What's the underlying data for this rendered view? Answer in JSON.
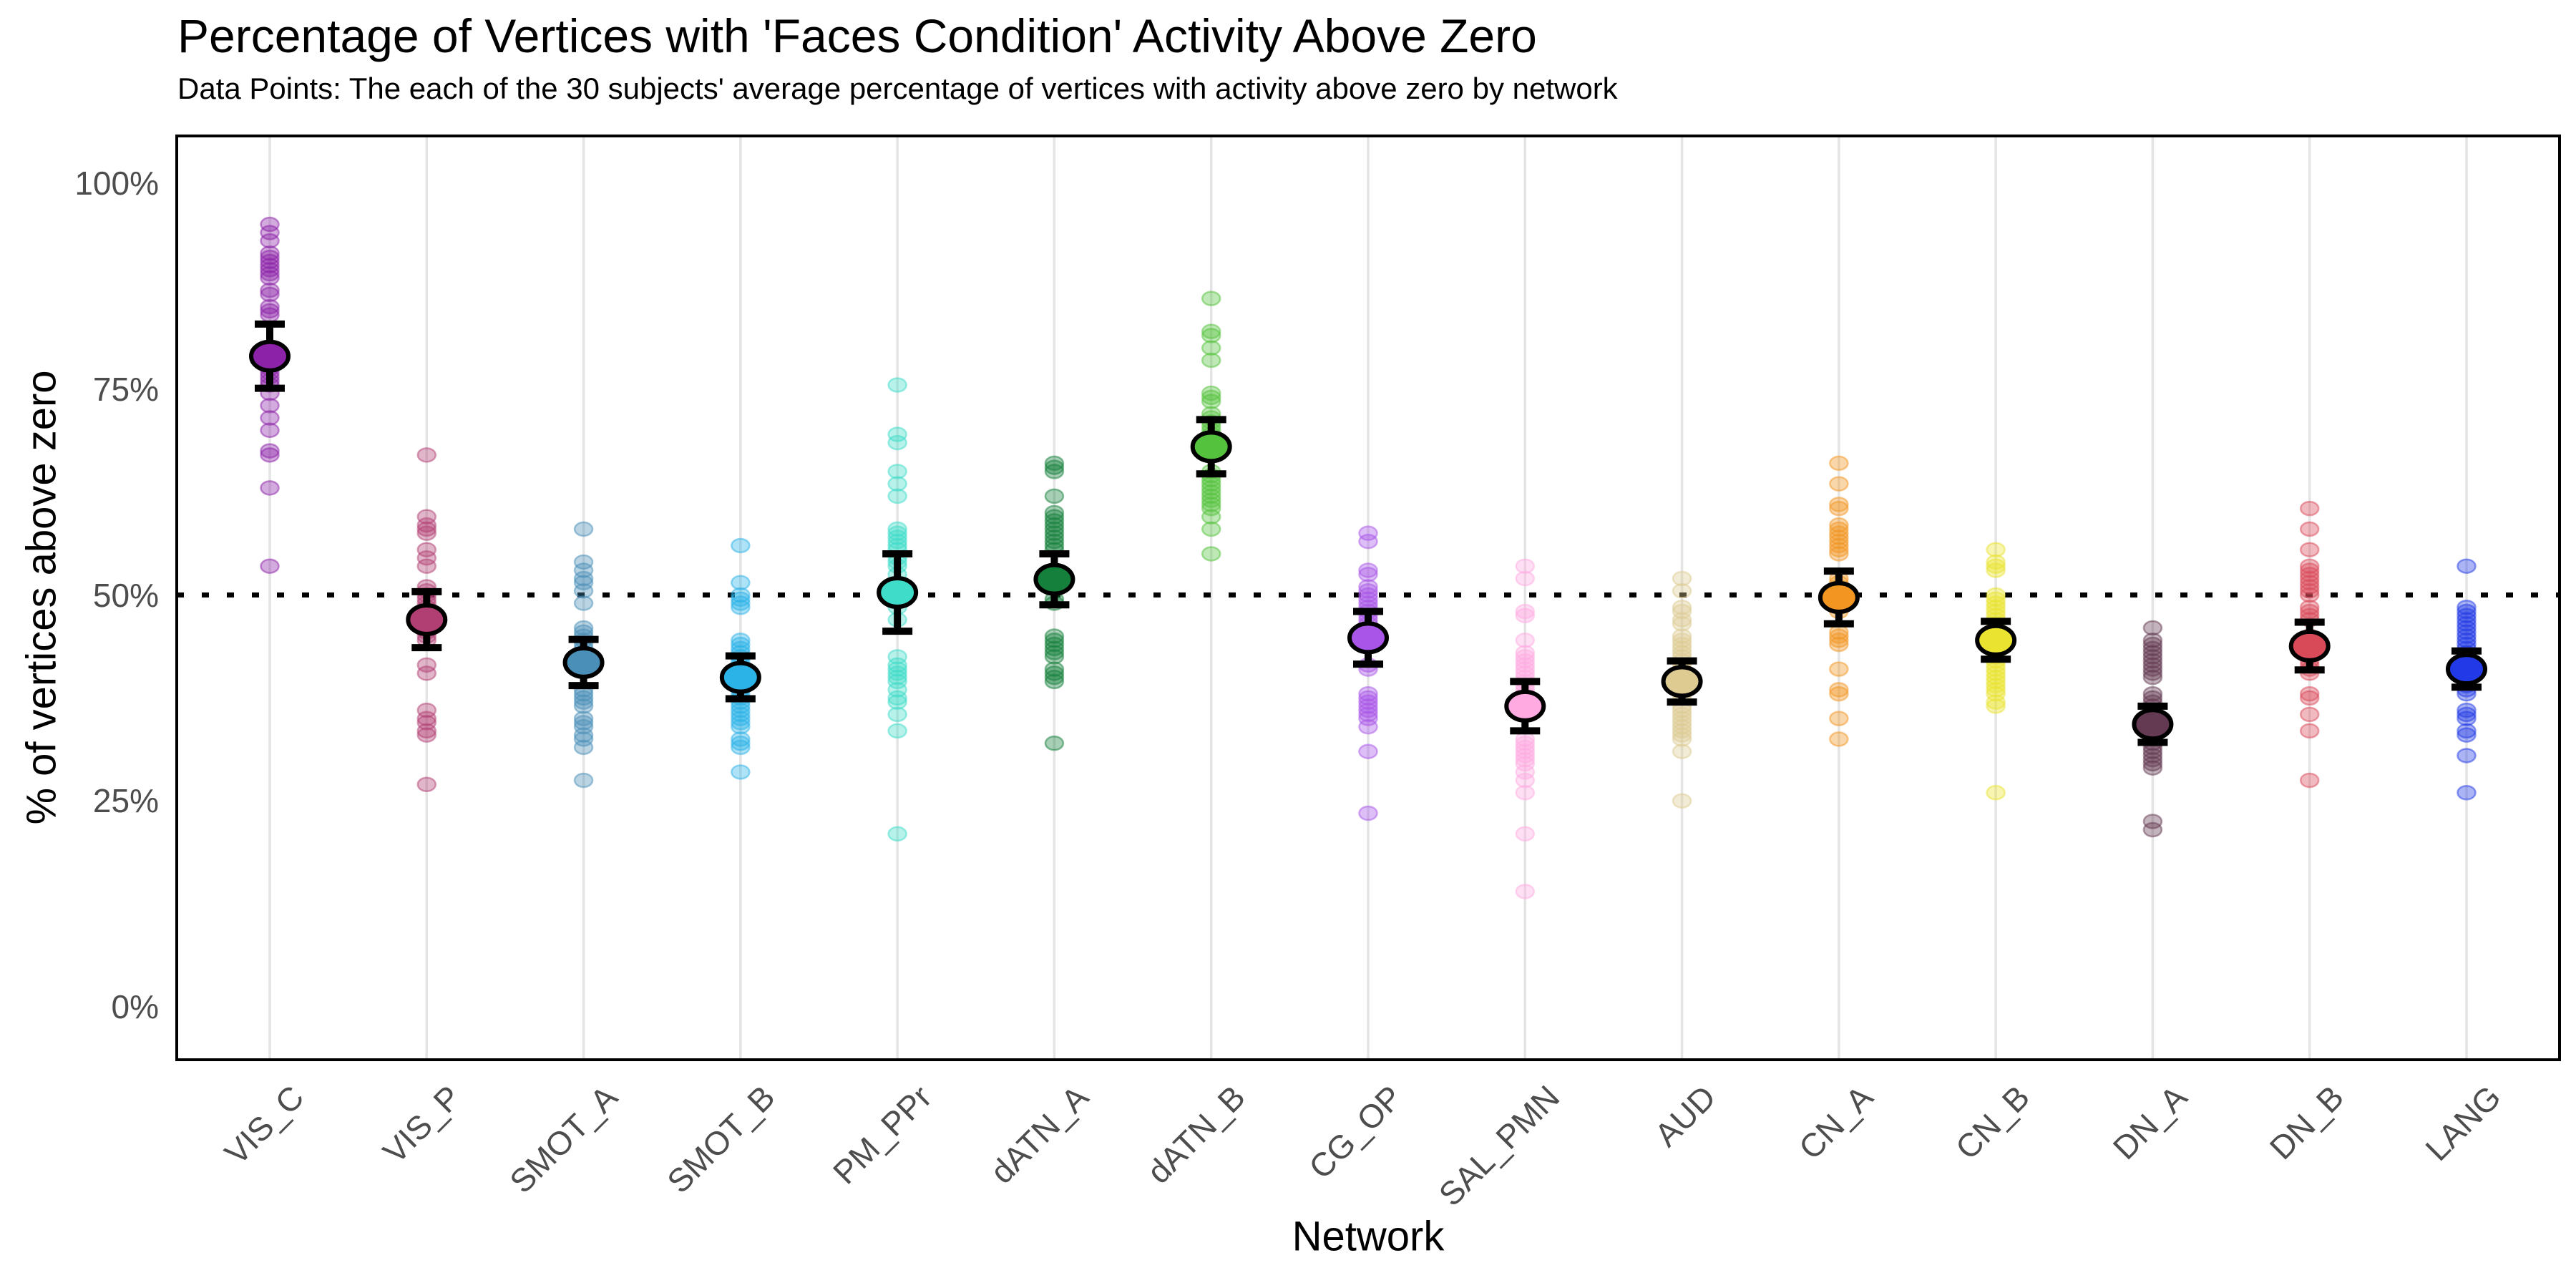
{
  "title": "Percentage of Vertices with 'Faces Condition' Activity Above Zero",
  "subtitle": "Data Points: The each of the 30 subjects' average percentage of vertices with activity above zero by network",
  "x_axis": {
    "label": "Network"
  },
  "y_axis": {
    "label": "% of vertices above zero",
    "tick_labels": [
      "0%",
      "25%",
      "50%",
      "75%",
      "100%"
    ]
  },
  "chart_data": {
    "type": "scatter",
    "title": "Percentage of Vertices with 'Faces Condition' Activity Above Zero",
    "subtitle": "Data Points: The each of the 30 subjects' average percentage of vertices with activity above zero by network",
    "xlabel": "Network",
    "ylabel": "% of vertices above zero",
    "ylim": [
      -6,
      106
    ],
    "yticks": [
      0,
      25,
      50,
      75,
      100
    ],
    "reference_line": 50,
    "grid": "vertical-category-lines-only",
    "grid_color": "#E4E4E4",
    "panel_border_color": "#000000",
    "tick_label_color": "#4D4D4D",
    "legend": "none",
    "marker_style": "30 translucent subject points per network, black 95% CI error bar, large outlined mean dot",
    "networks": [
      {
        "name": "VIS_C",
        "color": "#8B22A8",
        "mean": 79.0,
        "ci": 3.9,
        "points": [
          95,
          94,
          93,
          91.5,
          91,
          90.5,
          90,
          89.5,
          89,
          88.5,
          87,
          86.5,
          85,
          84.5,
          84,
          79.5,
          78,
          77.5,
          77,
          76.5,
          76,
          75.5,
          74.5,
          73,
          71.5,
          70,
          67.5,
          67,
          63,
          53.5
        ]
      },
      {
        "name": "VIS_P",
        "color": "#B23F74",
        "mean": 47.0,
        "ci": 3.4,
        "points": [
          67,
          59.5,
          58.5,
          58,
          57.5,
          55.5,
          54.5,
          53.5,
          51,
          50.5,
          50,
          49.5,
          49,
          48.5,
          48,
          47.5,
          47,
          46.5,
          46,
          45.5,
          45,
          44.5,
          41.5,
          40.5,
          36,
          35,
          34.5,
          33.5,
          33,
          27
        ]
      },
      {
        "name": "SMOT_A",
        "color": "#4A8FB8",
        "mean": 41.8,
        "ci": 2.8,
        "points": [
          58,
          54,
          53,
          52,
          51.5,
          50.5,
          49,
          46,
          45.5,
          45,
          44.5,
          44,
          43.5,
          43,
          42.5,
          42,
          41.5,
          41,
          38.5,
          38,
          37.5,
          37,
          36.5,
          35,
          34.5,
          34,
          33,
          32.5,
          31.5,
          27.5
        ]
      },
      {
        "name": "SMOT_B",
        "color": "#2BB2E7",
        "mean": 40.0,
        "ci": 2.6,
        "points": [
          56,
          51.5,
          50,
          49.5,
          49,
          48.5,
          44.5,
          44,
          43.5,
          43,
          42.5,
          42,
          41.5,
          41,
          40.5,
          39,
          38.5,
          38,
          37.5,
          37,
          36.5,
          36,
          35.5,
          35,
          34.5,
          34,
          32.5,
          32,
          31.5,
          28.5
        ]
      },
      {
        "name": "PM_PPr",
        "color": "#3EDCC9",
        "mean": 50.3,
        "ci": 4.7,
        "points": [
          75.5,
          69.5,
          68.5,
          65,
          63.5,
          62,
          58,
          57.5,
          57,
          56.5,
          56,
          55.5,
          54.5,
          54,
          53.5,
          52.5,
          48.5,
          47,
          42.5,
          41.5,
          41,
          40.5,
          40,
          39.5,
          38.5,
          37.5,
          37,
          35.5,
          33.5,
          21
        ]
      },
      {
        "name": "dATN_A",
        "color": "#15803C",
        "mean": 51.9,
        "ci": 3.1,
        "points": [
          66,
          65.5,
          65,
          62,
          60,
          59.5,
          59,
          58.5,
          58,
          57.5,
          57,
          56.5,
          56,
          55.5,
          53,
          52.5,
          52,
          49.5,
          49,
          45,
          44.5,
          44,
          43.5,
          43,
          42.5,
          41,
          40.5,
          40,
          39.5,
          32
        ]
      },
      {
        "name": "dATN_B",
        "color": "#54C23C",
        "mean": 68.0,
        "ci": 3.3,
        "points": [
          86,
          82,
          81.5,
          80,
          78.5,
          74.5,
          74,
          73.5,
          72,
          71.5,
          71,
          70.5,
          70,
          69.5,
          69,
          68.5,
          68,
          65,
          64.5,
          64,
          63.5,
          63,
          62.5,
          62,
          61.5,
          61,
          60.5,
          59.5,
          58,
          55
        ]
      },
      {
        "name": "CG_OP",
        "color": "#A855E8",
        "mean": 44.8,
        "ci": 3.2,
        "points": [
          57.5,
          56.5,
          53,
          52.5,
          51,
          50.5,
          50,
          49.5,
          49,
          48.5,
          48,
          47.5,
          47,
          46.5,
          46,
          45.5,
          45,
          44.5,
          41.5,
          41,
          38,
          37.5,
          37,
          36.5,
          36,
          35.5,
          35,
          34,
          31,
          23.5
        ]
      },
      {
        "name": "SAL_PMN",
        "color": "#FFABE1",
        "mean": 36.5,
        "ci": 3.0,
        "points": [
          53.5,
          52,
          48,
          47.5,
          44.5,
          43,
          42.5,
          42,
          41.5,
          41,
          40.5,
          40,
          39.5,
          39,
          38.5,
          38,
          37.5,
          37,
          32.5,
          32,
          31.5,
          31,
          30.5,
          30,
          29.5,
          28.5,
          27.5,
          26,
          21,
          14
        ]
      },
      {
        "name": "AUD",
        "color": "#DECB92",
        "mean": 39.5,
        "ci": 2.5,
        "points": [
          52,
          50.5,
          48.5,
          48,
          47,
          46.5,
          45,
          44.5,
          44,
          43.5,
          43,
          42.5,
          42,
          41.5,
          41,
          40.5,
          40,
          38,
          37.5,
          36.5,
          36,
          35.5,
          35,
          34.5,
          34,
          33.5,
          33,
          32.5,
          31,
          25
        ]
      },
      {
        "name": "CN_A",
        "color": "#F29521",
        "mean": 49.7,
        "ci": 3.2,
        "points": [
          66,
          63.5,
          61,
          60.5,
          58.5,
          58,
          57.5,
          57,
          56.5,
          56,
          55.5,
          55,
          52,
          51.5,
          51,
          50.5,
          50,
          49.5,
          49,
          48.5,
          48,
          45.5,
          45,
          44.5,
          44,
          41,
          38.5,
          38,
          35,
          32.5
        ]
      },
      {
        "name": "CN_B",
        "color": "#EAE430",
        "mean": 44.5,
        "ci": 2.3,
        "points": [
          55.5,
          54,
          53.5,
          53,
          50,
          49.5,
          49,
          48.5,
          48,
          47.5,
          47,
          46.5,
          46,
          45.5,
          45,
          44.5,
          44,
          42.5,
          42,
          41.5,
          41,
          40.5,
          40,
          39.5,
          39,
          38.5,
          38,
          37,
          36.5,
          26
        ]
      },
      {
        "name": "DN_A",
        "color": "#633A51",
        "mean": 34.3,
        "ci": 2.2,
        "points": [
          46,
          44.5,
          44,
          43.5,
          43,
          42.5,
          42,
          41.5,
          41,
          40.5,
          40,
          38,
          37.5,
          37,
          36.5,
          36,
          35.5,
          35,
          34.5,
          34,
          32.5,
          32,
          31.5,
          31,
          30.5,
          30,
          29.5,
          29,
          22.5,
          21.5
        ]
      },
      {
        "name": "DN_B",
        "color": "#D94A59",
        "mean": 43.8,
        "ci": 2.9,
        "points": [
          60.5,
          58,
          55.5,
          53.5,
          53,
          52.5,
          52,
          51.5,
          51,
          50.5,
          50,
          48.5,
          48,
          47.5,
          47,
          45,
          44.5,
          44,
          43.5,
          43,
          42.5,
          42,
          41.5,
          41,
          40.5,
          38,
          37.5,
          35.5,
          33.5,
          27.5
        ]
      },
      {
        "name": "LANG",
        "color": "#2139E6",
        "mean": 41.0,
        "ci": 2.2,
        "points": [
          53.5,
          48.5,
          48,
          47.5,
          47,
          46.5,
          46,
          45.5,
          45,
          44.5,
          44,
          43.5,
          43,
          42.5,
          42,
          41.5,
          41,
          40.5,
          40,
          39.5,
          39,
          38.5,
          38,
          36,
          35.5,
          35,
          33.5,
          33,
          30.5,
          26
        ]
      }
    ]
  }
}
